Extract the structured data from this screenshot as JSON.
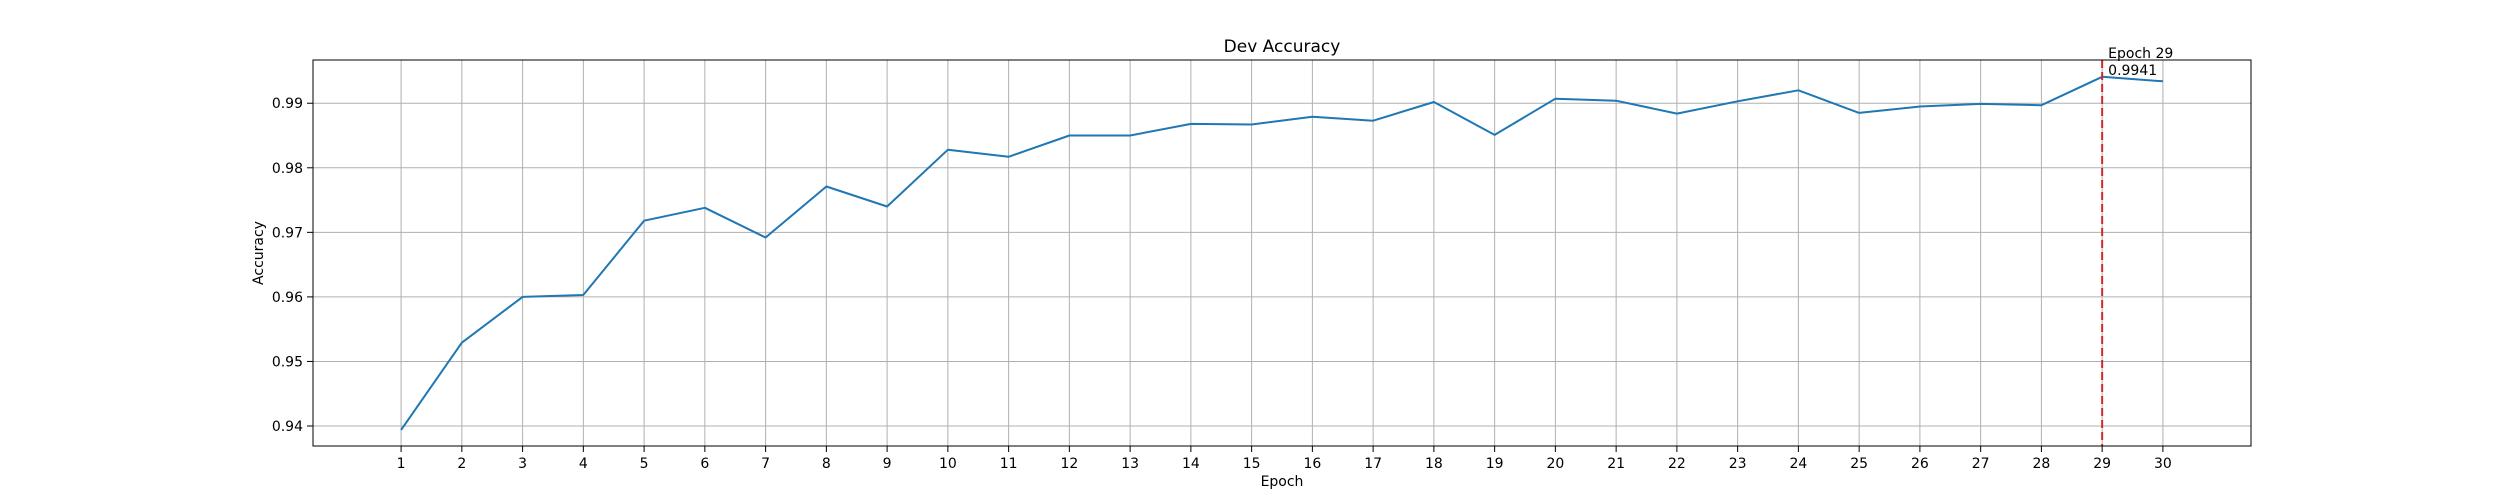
{
  "chart_data": {
    "type": "line",
    "title": "Dev Accuracy",
    "xlabel": "Epoch",
    "ylabel": "Accuracy",
    "x": [
      1,
      2,
      3,
      4,
      5,
      6,
      7,
      8,
      9,
      10,
      11,
      12,
      13,
      14,
      15,
      16,
      17,
      18,
      19,
      20,
      21,
      22,
      23,
      24,
      25,
      26,
      27,
      28,
      29,
      30
    ],
    "series": [
      {
        "values": [
          0.9394,
          0.9529,
          0.96,
          0.9603,
          0.9718,
          0.9738,
          0.9692,
          0.9771,
          0.974,
          0.9828,
          0.9817,
          0.985,
          0.985,
          0.9868,
          0.9867,
          0.9879,
          0.9873,
          0.9902,
          0.9851,
          0.9907,
          0.9904,
          0.9884,
          0.9903,
          0.992,
          0.9885,
          0.9895,
          0.9899,
          0.9897,
          0.9941,
          0.9934
        ],
        "color": "#1f77b4"
      }
    ],
    "xlim": [
      -0.45,
      31.45
    ],
    "ylim": [
      0.9369,
      0.9967
    ],
    "yticks": [
      0.94,
      0.95,
      0.96,
      0.97,
      0.98,
      0.99
    ],
    "ytick_labels": [
      "0.94",
      "0.95",
      "0.96",
      "0.97",
      "0.98",
      "0.99"
    ],
    "xticks": [
      1,
      2,
      3,
      4,
      5,
      6,
      7,
      8,
      9,
      10,
      11,
      12,
      13,
      14,
      15,
      16,
      17,
      18,
      19,
      20,
      21,
      22,
      23,
      24,
      25,
      26,
      27,
      28,
      29,
      30
    ],
    "grid": true,
    "best_marker": {
      "x": 29,
      "color": "#d62728",
      "style": "dashed",
      "label_line1": "Epoch 29",
      "label_line2": "0.9941"
    }
  }
}
